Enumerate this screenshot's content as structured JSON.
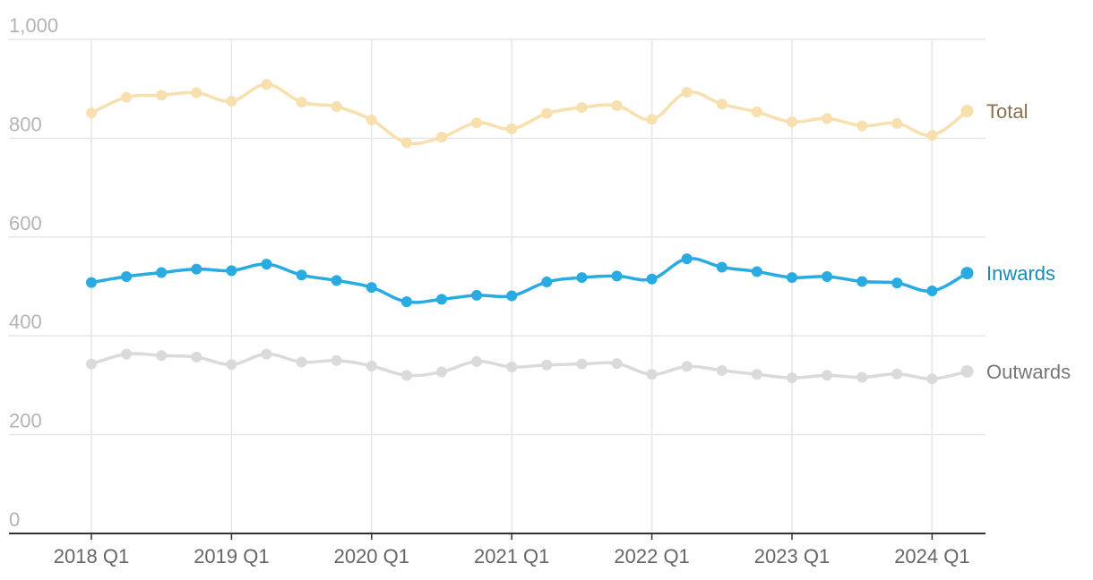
{
  "chart_data": {
    "type": "line",
    "title": "",
    "xlabel": "",
    "ylabel": "",
    "ylim": [
      0,
      1000
    ],
    "yticks": [
      {
        "value": 0,
        "label": "0"
      },
      {
        "value": 200,
        "label": "200"
      },
      {
        "value": 400,
        "label": "400"
      },
      {
        "value": 600,
        "label": "600"
      },
      {
        "value": 800,
        "label": "800"
      },
      {
        "value": 1000,
        "label": "1,000"
      }
    ],
    "x": [
      "2018 Q1",
      "2018 Q2",
      "2018 Q3",
      "2018 Q4",
      "2019 Q1",
      "2019 Q2",
      "2019 Q3",
      "2019 Q4",
      "2020 Q1",
      "2020 Q2",
      "2020 Q3",
      "2020 Q4",
      "2021 Q1",
      "2021 Q2",
      "2021 Q3",
      "2021 Q4",
      "2022 Q1",
      "2022 Q2",
      "2022 Q3",
      "2022 Q4",
      "2023 Q1",
      "2023 Q2",
      "2023 Q3",
      "2023 Q4",
      "2024 Q1",
      "2024 Q2"
    ],
    "xticks": [
      "2018 Q1",
      "2019 Q1",
      "2020 Q1",
      "2021 Q1",
      "2022 Q1",
      "2023 Q1",
      "2024 Q1"
    ],
    "grid": true,
    "legend": "end-of-line labels",
    "series": [
      {
        "name": "Total",
        "color": "#f8dfae",
        "label_color": "#8a7150",
        "values": [
          851,
          883,
          887,
          892,
          875,
          909,
          873,
          864,
          837,
          791,
          802,
          831,
          819,
          850,
          862,
          866,
          838,
          893,
          869,
          853,
          833,
          840,
          825,
          830,
          806,
          855
        ]
      },
      {
        "name": "Inwards",
        "color": "#29abe2",
        "label_color": "#1b8ab9",
        "values": [
          508,
          520,
          528,
          535,
          532,
          545,
          523,
          512,
          498,
          469,
          474,
          482,
          481,
          509,
          518,
          521,
          515,
          556,
          539,
          530,
          518,
          520,
          510,
          507,
          491,
          527
        ]
      },
      {
        "name": "Outwards",
        "color": "#dadada",
        "label_color": "#777777",
        "values": [
          343,
          363,
          360,
          357,
          342,
          363,
          347,
          350,
          339,
          320,
          327,
          348,
          337,
          341,
          343,
          344,
          322,
          338,
          330,
          322,
          315,
          320,
          316,
          323,
          313,
          328
        ]
      }
    ]
  }
}
